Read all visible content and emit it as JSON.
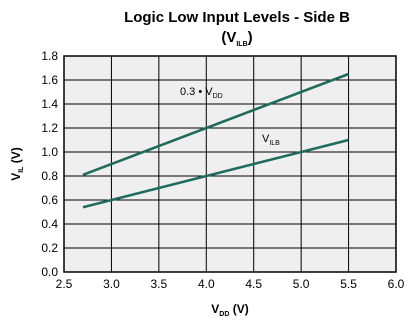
{
  "chart_data": {
    "type": "line",
    "title": {
      "line1": "Logic Low Input Levels - Side B",
      "line2_open": "(V",
      "line2_sub": "ILB",
      "line2_close": ")"
    },
    "xlabel": {
      "main": "V",
      "sub": "DD",
      "unit": " (V)"
    },
    "ylabel": {
      "main": "V",
      "sub": "IL",
      "unit": " (V)"
    },
    "xlim": [
      2.5,
      6.0
    ],
    "ylim": [
      0.0,
      1.8
    ],
    "x_ticks": [
      "2.5",
      "3.0",
      "3.5",
      "4.0",
      "4.5",
      "5.0",
      "5.5",
      "6.0"
    ],
    "y_ticks": [
      "0.0",
      "0.2",
      "0.4",
      "0.6",
      "0.8",
      "1.0",
      "1.2",
      "1.4",
      "1.6",
      "1.8"
    ],
    "grid": true,
    "line_color": "#1f6b5e",
    "plot_background": "#efefef",
    "series": [
      {
        "label_main": "0.3 • V",
        "label_sub": "DD",
        "x": [
          2.7,
          5.5
        ],
        "y": [
          0.81,
          1.65
        ]
      },
      {
        "label_main": "V",
        "label_sub": "ILB",
        "x": [
          2.7,
          5.5
        ],
        "y": [
          0.54,
          1.1
        ]
      }
    ]
  }
}
